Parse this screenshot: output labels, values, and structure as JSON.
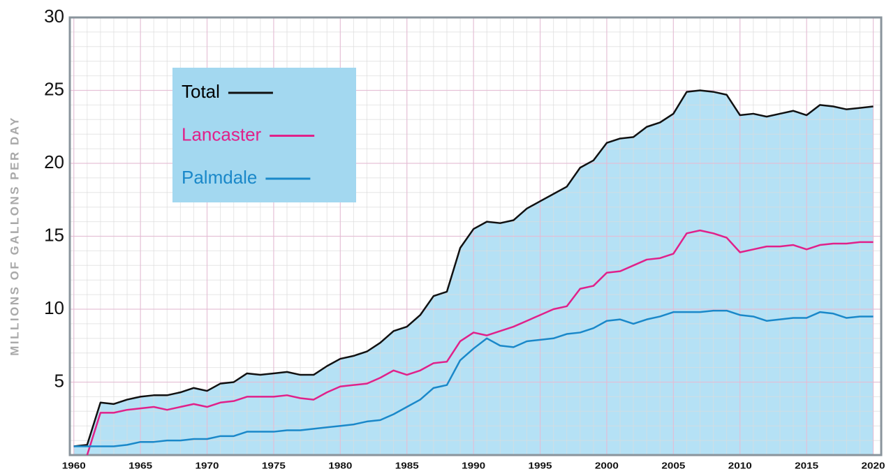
{
  "chart_data": {
    "type": "line",
    "y_label": "MILLIONS OF GALLONS PER DAY",
    "x": [
      1960,
      1961,
      1962,
      1963,
      1964,
      1965,
      1966,
      1967,
      1968,
      1969,
      1970,
      1971,
      1972,
      1973,
      1974,
      1975,
      1976,
      1977,
      1978,
      1979,
      1980,
      1981,
      1982,
      1983,
      1984,
      1985,
      1986,
      1987,
      1988,
      1989,
      1990,
      1991,
      1992,
      1993,
      1994,
      1995,
      1996,
      1997,
      1998,
      1999,
      2000,
      2001,
      2002,
      2003,
      2004,
      2005,
      2006,
      2007,
      2008,
      2009,
      2010,
      2011,
      2012,
      2013,
      2014,
      2015,
      2016,
      2017,
      2018,
      2019,
      2020
    ],
    "series": [
      {
        "name": "Total",
        "color": "#111111",
        "fill_color": "#b5e1f5",
        "values": [
          0.6,
          0.7,
          3.6,
          3.5,
          3.8,
          4.0,
          4.1,
          4.1,
          4.3,
          4.6,
          4.4,
          4.9,
          5.0,
          5.6,
          5.5,
          5.6,
          5.7,
          5.5,
          5.5,
          6.1,
          6.6,
          6.8,
          7.1,
          7.7,
          8.5,
          8.8,
          9.6,
          10.9,
          11.2,
          14.2,
          15.5,
          16.0,
          15.9,
          16.1,
          16.9,
          17.4,
          17.9,
          18.4,
          19.7,
          20.2,
          21.4,
          21.7,
          21.8,
          22.5,
          22.8,
          23.4,
          24.9,
          25.0,
          24.9,
          24.7,
          23.3,
          23.4,
          23.2,
          23.4,
          23.6,
          23.3,
          24.0,
          23.9,
          23.7,
          23.8,
          23.9
        ]
      },
      {
        "name": "Lancaster",
        "color": "#e0218a",
        "values": [
          null,
          0.0,
          2.9,
          2.9,
          3.1,
          3.2,
          3.3,
          3.1,
          3.3,
          3.5,
          3.3,
          3.6,
          3.7,
          4.0,
          4.0,
          4.0,
          4.1,
          3.9,
          3.8,
          4.3,
          4.7,
          4.8,
          4.9,
          5.3,
          5.8,
          5.5,
          5.8,
          6.3,
          6.4,
          7.8,
          8.4,
          8.2,
          8.5,
          8.8,
          9.2,
          9.6,
          10.0,
          10.2,
          11.4,
          11.6,
          12.5,
          12.6,
          13.0,
          13.4,
          13.5,
          13.8,
          15.2,
          15.4,
          15.2,
          14.9,
          13.9,
          14.1,
          14.3,
          14.3,
          14.4,
          14.1,
          14.4,
          14.5,
          14.5,
          14.6,
          14.6
        ]
      },
      {
        "name": "Palmdale",
        "color": "#1a88c9",
        "values": [
          0.6,
          0.6,
          0.6,
          0.6,
          0.7,
          0.9,
          0.9,
          1.0,
          1.0,
          1.1,
          1.1,
          1.3,
          1.3,
          1.6,
          1.6,
          1.6,
          1.7,
          1.7,
          1.8,
          1.9,
          2.0,
          2.1,
          2.3,
          2.4,
          2.8,
          3.3,
          3.8,
          4.6,
          4.8,
          6.5,
          7.3,
          8.0,
          7.5,
          7.4,
          7.8,
          7.9,
          8.0,
          8.3,
          8.4,
          8.7,
          9.2,
          9.3,
          9.0,
          9.3,
          9.5,
          9.8,
          9.8,
          9.8,
          9.9,
          9.9,
          9.6,
          9.5,
          9.2,
          9.3,
          9.4,
          9.4,
          9.8,
          9.7,
          9.4,
          9.5,
          9.5
        ]
      }
    ],
    "xlim": [
      1959.7,
      2020.6
    ],
    "ylim": [
      0,
      30
    ],
    "xticks": [
      1960,
      1965,
      1970,
      1975,
      1980,
      1985,
      1990,
      1995,
      2000,
      2005,
      2010,
      2015,
      2020
    ],
    "yticks": [
      5,
      10,
      15,
      20,
      25,
      30
    ],
    "grid": true,
    "legend": "upper left",
    "legend_color": "#a3d8f0"
  }
}
